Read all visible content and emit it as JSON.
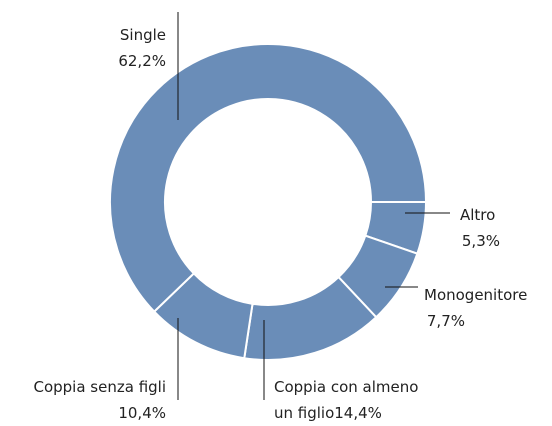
{
  "chart_data": {
    "type": "donut",
    "categories": [
      "Altro",
      "Monogenitore",
      "Coppia con almeno un figlio",
      "Coppia senza figli",
      "Single"
    ],
    "values": [
      5.3,
      7.7,
      14.4,
      10.4,
      62.2
    ],
    "value_labels": [
      "5,3%",
      "7,7%",
      "14,4%",
      "10,4%",
      "62,2%"
    ],
    "color": "#6a8db8"
  }
}
